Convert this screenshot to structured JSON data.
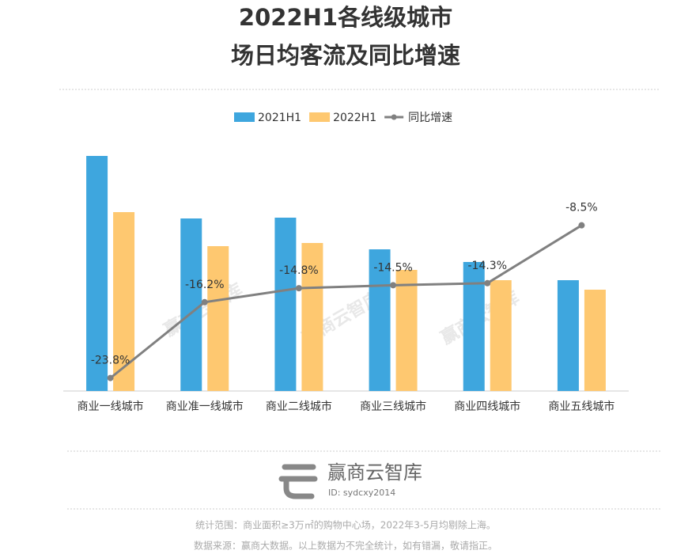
{
  "chart_data": {
    "type": "bar",
    "title": [
      "2022H1各线级城市",
      "场日均客流及同比增速"
    ],
    "categories": [
      "商业一线城市",
      "商业准一线城市",
      "商业二线城市",
      "商业三线城市",
      "商业四线城市",
      "商业五线城市"
    ],
    "series": [
      {
        "name": "2021H1",
        "type": "bar",
        "color": "#3ea6de",
        "values": [
          297,
          218,
          219,
          179,
          163,
          140
        ]
      },
      {
        "name": "2022H1",
        "type": "bar",
        "color": "#fec870",
        "values": [
          226,
          183,
          187,
          153,
          140,
          128
        ]
      },
      {
        "name": "同比增速",
        "type": "line",
        "axis": "y2",
        "color": "#808080",
        "values": [
          -23.8,
          -16.2,
          -14.8,
          -14.5,
          -14.3,
          -8.5
        ],
        "value_labels": [
          "-23.8%",
          "-16.2%",
          "-14.8%",
          "-14.5%",
          "-14.3%",
          "-8.5%"
        ]
      }
    ],
    "ylim": [
      0,
      314
    ],
    "y2lim": [
      -25.1,
      -0.2
    ],
    "legend": "top"
  },
  "watermark": "赢商云智库",
  "footer": {
    "brand": "赢商云智库",
    "id": "ID: sydcxy2014",
    "notes": [
      "统计范围：商业面积≥3万㎡的购物中心场，2022年3-5月均剔除上海。",
      "数据来源：赢商大数据。以上数据为不完全统计，如有错漏，敬请指正。"
    ]
  }
}
